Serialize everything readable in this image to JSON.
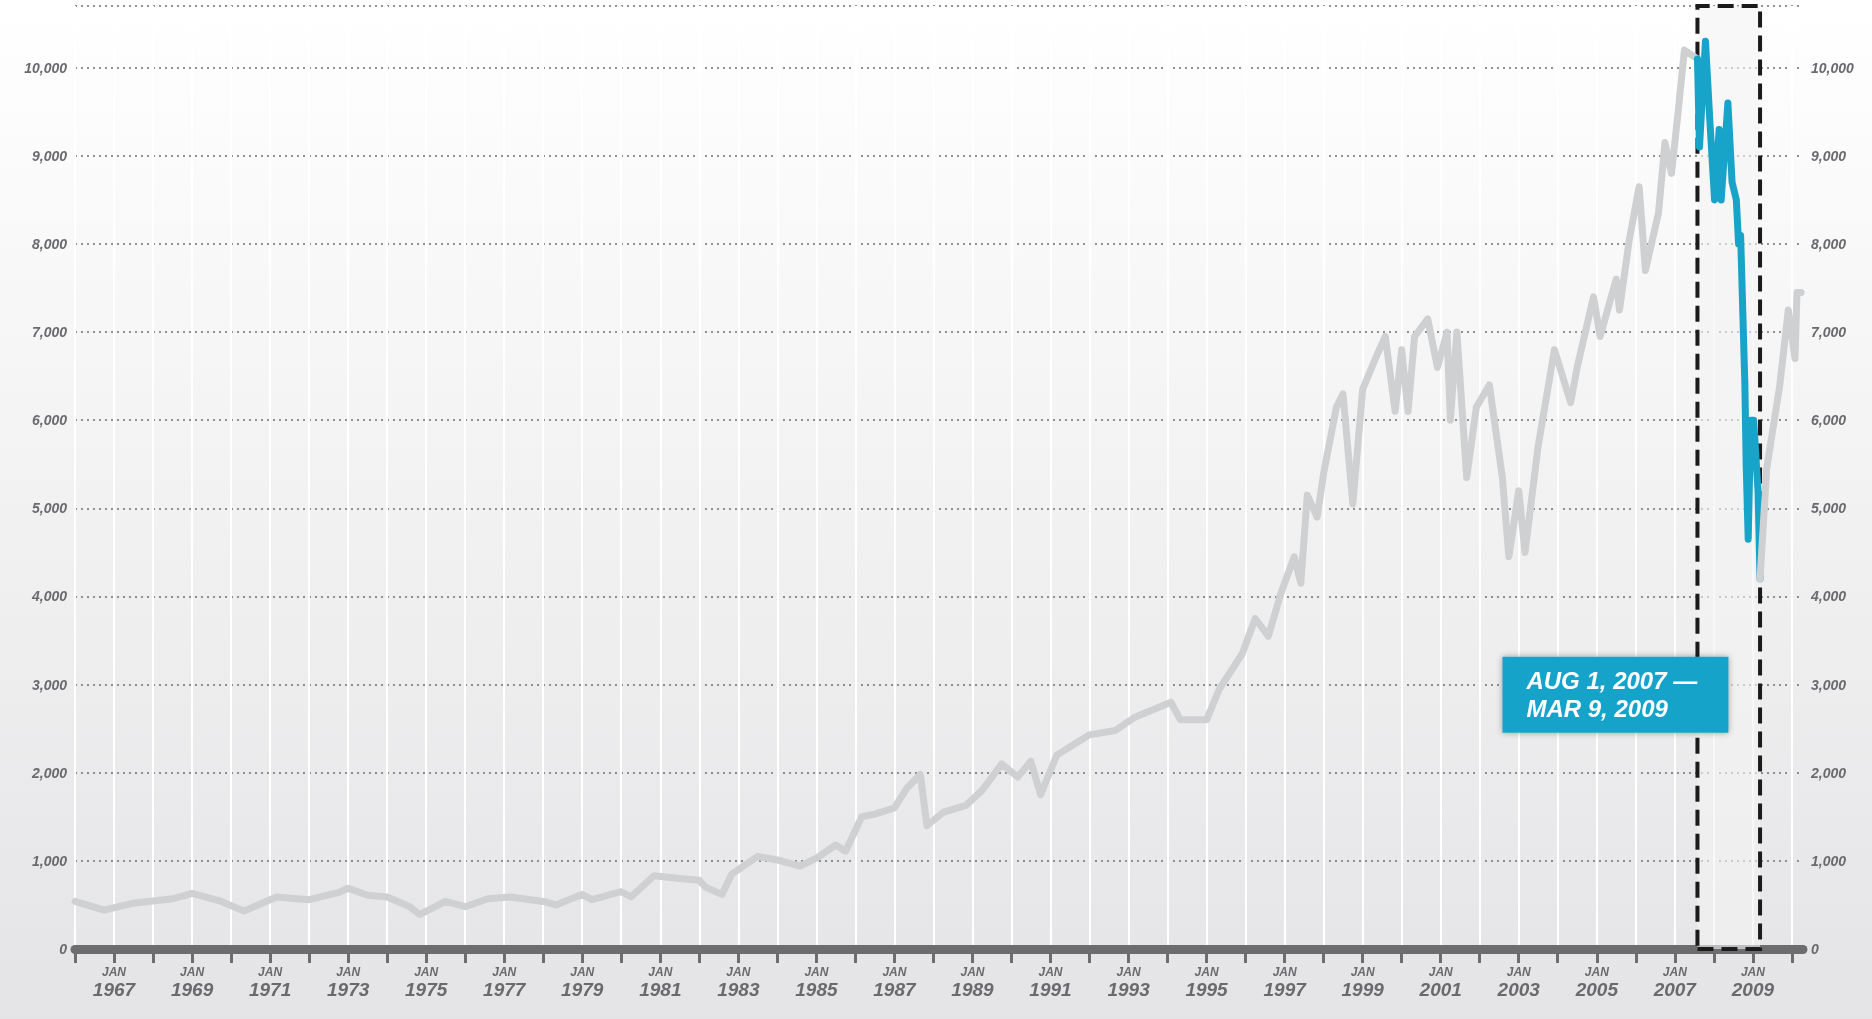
{
  "chart_data": {
    "type": "line",
    "xlim": [
      "1966-01-01",
      "2010-04-15"
    ],
    "xticks": [
      {
        "value": "1966-01-01",
        "label": null
      },
      {
        "value": "1967-01-01",
        "label": "JAN 1967"
      },
      {
        "value": "1968-01-01",
        "label": null
      },
      {
        "value": "1969-01-01",
        "label": "JAN 1969"
      },
      {
        "value": "1970-01-01",
        "label": null
      },
      {
        "value": "1971-01-01",
        "label": "JAN 1971"
      },
      {
        "value": "1972-01-01",
        "label": null
      },
      {
        "value": "1973-01-01",
        "label": "JAN 1973"
      },
      {
        "value": "1974-01-01",
        "label": null
      },
      {
        "value": "1975-01-01",
        "label": "JAN 1975"
      },
      {
        "value": "1976-01-01",
        "label": null
      },
      {
        "value": "1977-01-01",
        "label": "JAN 1977"
      },
      {
        "value": "1978-01-01",
        "label": null
      },
      {
        "value": "1979-01-01",
        "label": "JAN 1979"
      },
      {
        "value": "1980-01-01",
        "label": null
      },
      {
        "value": "1981-01-01",
        "label": "JAN 1981"
      },
      {
        "value": "1982-01-01",
        "label": null
      },
      {
        "value": "1983-01-01",
        "label": "JAN 1983"
      },
      {
        "value": "1984-01-01",
        "label": null
      },
      {
        "value": "1985-01-01",
        "label": "JAN 1985"
      },
      {
        "value": "1986-01-01",
        "label": null
      },
      {
        "value": "1987-01-01",
        "label": "JAN 1987"
      },
      {
        "value": "1988-01-01",
        "label": null
      },
      {
        "value": "1989-01-01",
        "label": "JAN 1989"
      },
      {
        "value": "1990-01-01",
        "label": null
      },
      {
        "value": "1991-01-01",
        "label": "JAN 1991"
      },
      {
        "value": "1992-01-01",
        "label": null
      },
      {
        "value": "1993-01-01",
        "label": "JAN 1993"
      },
      {
        "value": "1994-01-01",
        "label": null
      },
      {
        "value": "1995-01-01",
        "label": "JAN 1995"
      },
      {
        "value": "1996-01-01",
        "label": null
      },
      {
        "value": "1997-01-01",
        "label": "JAN 1997"
      },
      {
        "value": "1998-01-01",
        "label": null
      },
      {
        "value": "1999-01-01",
        "label": "JAN 1999"
      },
      {
        "value": "2000-01-01",
        "label": null
      },
      {
        "value": "2001-01-01",
        "label": "JAN 2001"
      },
      {
        "value": "2002-01-01",
        "label": null
      },
      {
        "value": "2003-01-01",
        "label": "JAN 2003"
      },
      {
        "value": "2004-01-01",
        "label": null
      },
      {
        "value": "2005-01-01",
        "label": "JAN 2005"
      },
      {
        "value": "2006-01-01",
        "label": null
      },
      {
        "value": "2007-01-01",
        "label": "JAN 2007"
      },
      {
        "value": "2008-01-01",
        "label": null
      },
      {
        "value": "2009-01-01",
        "label": "JAN 2009"
      },
      {
        "value": "2010-01-01",
        "label": null
      }
    ],
    "ylim": [
      0,
      10700
    ],
    "yticks": [
      0,
      {
        "value": 1000,
        "label": "1,000"
      },
      {
        "value": 2000,
        "label": "2,000"
      },
      {
        "value": 3000,
        "label": "3,000"
      },
      {
        "value": 4000,
        "label": "4,000"
      },
      {
        "value": 5000,
        "label": "5,000"
      },
      {
        "value": 6000,
        "label": "6,000"
      },
      {
        "value": 7000,
        "label": "7,000"
      },
      {
        "value": 8000,
        "label": "8,000"
      },
      {
        "value": 9000,
        "label": "9,000"
      },
      {
        "value": 10000,
        "label": "10,000"
      }
    ],
    "y2lim": [
      0,
      10700
    ],
    "y2ticks": [
      0,
      {
        "value": 1000,
        "label": "1,000"
      },
      {
        "value": 2000,
        "label": "2,000"
      },
      {
        "value": 3000,
        "label": "3,000"
      },
      {
        "value": 4000,
        "label": "4,000"
      },
      {
        "value": 5000,
        "label": "5,000"
      },
      {
        "value": 6000,
        "label": "6,000"
      },
      {
        "value": 7000,
        "label": "7,000"
      },
      {
        "value": 8000,
        "label": "8,000"
      },
      {
        "value": 9000,
        "label": "9,000"
      },
      {
        "value": 10000,
        "label": "10,000"
      }
    ],
    "grid": true,
    "marker": "none",
    "line_style": "solid",
    "series": [
      {
        "color": "#cfd0d2",
        "x": [
          "1966-01",
          "1966-10",
          "1967-07",
          "1968-07",
          "1969-01",
          "1969-10",
          "1970-05",
          "1971-03",
          "1972-01",
          "1972-10",
          "1973-01",
          "1973-07",
          "1974-01",
          "1974-08",
          "1974-11",
          "1975-07",
          "1976-01",
          "1976-08",
          "1977-03",
          "1978-01",
          "1978-05",
          "1979-01",
          "1979-04",
          "1980-01",
          "1980-04",
          "1980-11",
          "1981-07",
          "1982-01",
          "1982-03",
          "1982-08",
          "1982-11",
          "1983-07",
          "1984-01",
          "1984-08",
          "1985-01",
          "1985-07",
          "1985-10",
          "1986-03",
          "1986-07",
          "1987-01",
          "1987-05",
          "1987-09",
          "1987-11",
          "1988-04",
          "1988-11",
          "1989-04",
          "1989-10",
          "1990-03",
          "1990-07",
          "1990-10",
          "1991-03",
          "1992-01",
          "1992-09",
          "1993-03",
          "1994-02",
          "1994-05",
          "1995-01",
          "1995-05",
          "1995-12",
          "1996-04",
          "1996-08",
          "1996-12",
          "1997-04",
          "1997-06",
          "1997-08",
          "1997-11",
          "1998-01",
          "1998-05",
          "1998-07",
          "1998-10",
          "1999-01",
          "1999-05",
          "1999-08",
          "1999-11",
          "2000-01",
          "2000-03",
          "2000-05",
          "2000-09",
          "2000-12",
          "2001-03",
          "2001-04",
          "2001-06",
          "2001-09",
          "2001-12",
          "2002-04",
          "2002-08",
          "2002-10",
          "2003-01",
          "2003-03",
          "2003-07",
          "2003-12",
          "2004-05",
          "2004-07",
          "2004-12",
          "2005-02",
          "2005-07",
          "2005-08",
          "2005-11",
          "2006-02",
          "2006-04",
          "2006-08",
          "2006-10",
          "2006-12",
          "2007-02",
          "2007-04",
          "2007-08-01"
        ],
        "values": [
          540,
          440,
          520,
          570,
          630,
          540,
          430,
          590,
          560,
          640,
          690,
          610,
          590,
          480,
          390,
          540,
          480,
          570,
          590,
          540,
          500,
          620,
          560,
          650,
          590,
          830,
          800,
          780,
          700,
          620,
          850,
          1050,
          1010,
          940,
          1030,
          1180,
          1110,
          1500,
          1530,
          1600,
          1830,
          1980,
          1400,
          1550,
          1630,
          1800,
          2100,
          1950,
          2130,
          1750,
          2200,
          2430,
          2480,
          2630,
          2800,
          2600,
          2600,
          2950,
          3350,
          3750,
          3550,
          4050,
          4450,
          4150,
          5150,
          4900,
          5400,
          6150,
          6300,
          5050,
          6350,
          6700,
          6950,
          6100,
          6800,
          6100,
          6950,
          7150,
          6600,
          7000,
          6000,
          7000,
          5350,
          6150,
          6400,
          5350,
          4450,
          5200,
          4500,
          5700,
          6800,
          6200,
          6600,
          7400,
          6950,
          7600,
          7250,
          8050,
          8650,
          7700,
          8350,
          9150,
          8800,
          9500,
          10200,
          10100
        ]
      },
      {
        "color": "#18a3c9",
        "x": [
          "2007-08-01",
          "2007-08-20",
          "2007-10-15",
          "2007-11-25",
          "2008-01-08",
          "2008-02-20",
          "2008-03-10",
          "2008-05-12",
          "2008-06-20",
          "2008-07-30",
          "2008-08-20",
          "2008-09-08",
          "2008-10-18",
          "2008-10-30",
          "2008-11-18",
          "2008-12-12",
          "2009-01-08",
          "2009-02-18",
          "2009-03-09"
        ],
        "values": [
          10100,
          9100,
          10300,
          9400,
          8500,
          9300,
          8500,
          9600,
          8700,
          8500,
          8000,
          8100,
          6400,
          5500,
          4650,
          6000,
          6000,
          5200,
          4200
        ]
      },
      {
        "color": "#cfd0d2",
        "x": [
          "2009-03-09",
          "2009-05-10",
          "2009-09-10",
          "2009-11-28",
          "2010-01-30",
          "2010-02-18",
          "2010-03-28"
        ],
        "values": [
          4200,
          5450,
          6400,
          7250,
          6700,
          7450,
          7450
        ]
      }
    ],
    "bands": [
      {
        "axis": "x",
        "from": "2007-08-01",
        "to": "2009-03-09",
        "color": "#f4f4f4"
      }
    ],
    "annotations": [
      "AUG 1, 2007 — MAR 9, 2009"
    ]
  }
}
